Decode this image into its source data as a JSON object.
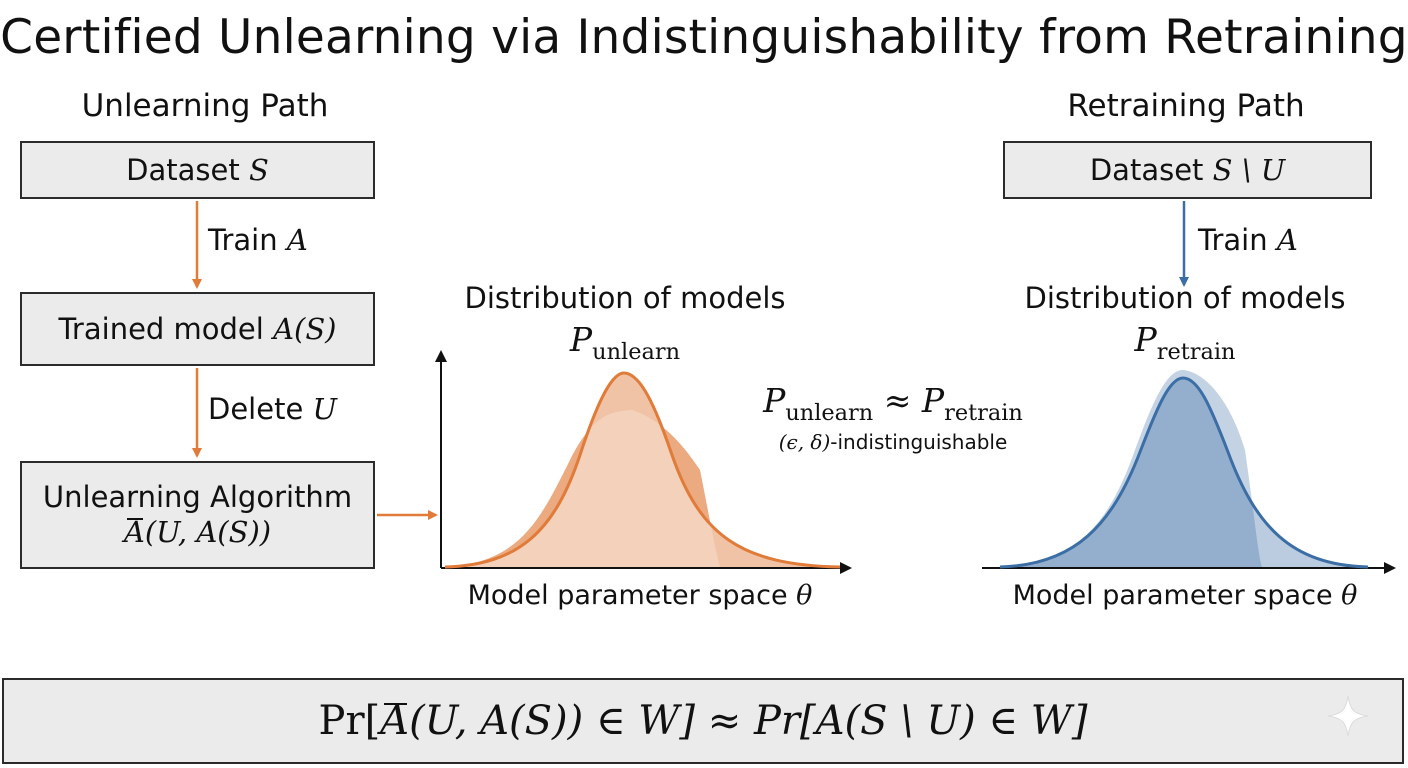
{
  "title": "Certified Unlearning via Indistinguishability from Retraining",
  "unlearning_path": {
    "label": "Unlearning Path",
    "dataset_box": {
      "text": "Dataset",
      "symbol": "S"
    },
    "step1": {
      "text": "Train",
      "symbol": "A"
    },
    "trained_box": {
      "text": "Trained model",
      "symbol": "A(S)"
    },
    "step2": {
      "text": "Delete",
      "symbol": "U"
    },
    "algorithm_box": {
      "line1": "Unlearning Algorithm",
      "symbol": "A",
      "args": "(U, A(S))"
    }
  },
  "retraining_path": {
    "label": "Retraining Path",
    "dataset_box": {
      "text": "Dataset",
      "symbol": "S \\ U"
    },
    "step1": {
      "text": "Train",
      "symbol": "A"
    }
  },
  "unlearn_distribution": {
    "title": "Distribution of models",
    "symbol": "P",
    "subscript": "unlearn",
    "axis_label": "Model parameter space",
    "axis_symbol": "θ",
    "color": "#e07b39"
  },
  "retrain_distribution": {
    "title": "Distribution of models",
    "symbol": "P",
    "subscript": "retrain",
    "axis_label": "Model parameter space",
    "axis_symbol": "θ",
    "color": "#3b6ea5"
  },
  "comparison": {
    "lhs_symbol": "P",
    "lhs_subscript": "unlearn",
    "operator": "≈",
    "rhs_symbol": "P",
    "rhs_subscript": "retrain",
    "note_symbols": "(ϵ, δ)",
    "note_text": "-indistinguishable"
  },
  "formula": {
    "left_pr": "Pr[",
    "left_bar_symbol": "A",
    "left_rest": "(U, A(S)) ∈ W]",
    "approx": "≈",
    "right": "Pr[A(S \\ U) ∈ W]"
  },
  "icons": {
    "sparkle": "sparkle-icon"
  }
}
